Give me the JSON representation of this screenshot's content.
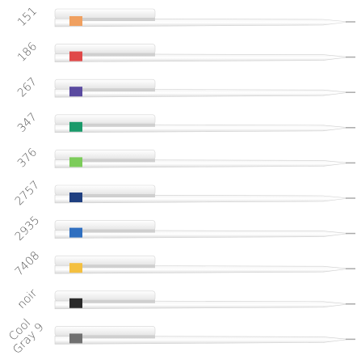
{
  "pens": [
    {
      "label": [
        "151"
      ],
      "color": "#f0a060"
    },
    {
      "label": [
        "186"
      ],
      "color": "#e04848"
    },
    {
      "label": [
        "267"
      ],
      "color": "#5a4aa0"
    },
    {
      "label": [
        "347"
      ],
      "color": "#1a9a6a"
    },
    {
      "label": [
        "376"
      ],
      "color": "#7ccc5a"
    },
    {
      "label": [
        "2757"
      ],
      "color": "#1f3f80"
    },
    {
      "label": [
        "2935"
      ],
      "color": "#2f6fc0"
    },
    {
      "label": [
        "7408"
      ],
      "color": "#f4c040"
    },
    {
      "label": [
        "noir"
      ],
      "color": "#2a2a2a"
    },
    {
      "label": [
        "Cool",
        "Gray 9"
      ],
      "color": "#707070"
    }
  ]
}
